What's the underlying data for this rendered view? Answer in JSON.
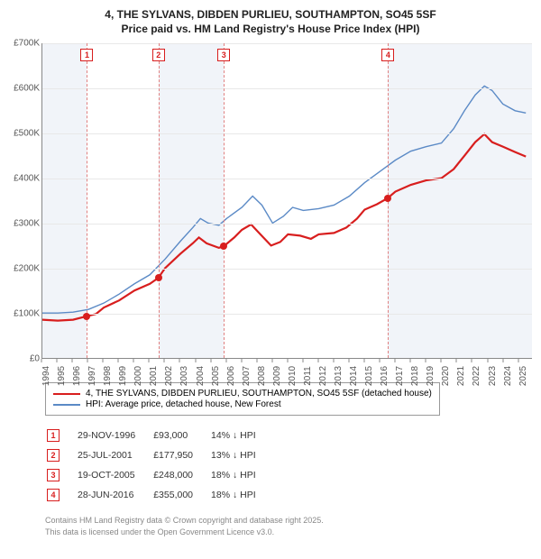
{
  "title_line1": "4, THE SYLVANS, DIBDEN PURLIEU, SOUTHAMPTON, SO45 5SF",
  "title_line2": "Price paid vs. HM Land Registry's House Price Index (HPI)",
  "chart": {
    "type": "line",
    "background_color": "#ffffff",
    "grid_color": "#e8e8e8",
    "shade_color": "#e8edf5",
    "axis_color": "#888888",
    "x": {
      "min": 1994,
      "max": 2025.9,
      "tick_start": 1994,
      "tick_end": 2025,
      "tick_step": 1,
      "label_fontsize": 10
    },
    "y": {
      "min": 0,
      "max": 700000,
      "tick_step": 100000,
      "tick_labels": [
        "£0",
        "£100K",
        "£200K",
        "£300K",
        "£400K",
        "£500K",
        "£600K",
        "£700K"
      ],
      "label_fontsize": 10
    },
    "shaded_year_ranges": [
      [
        1994,
        1996.9
      ],
      [
        2001.55,
        2005.8
      ],
      [
        2016.48,
        2025.9
      ]
    ],
    "series": [
      {
        "name": "price_paid",
        "label": "4, THE SYLVANS, DIBDEN PURLIEU, SOUTHAMPTON, SO45 5SF (detached house)",
        "color": "#d81e1e",
        "line_width": 2.2,
        "points": [
          [
            1994,
            85000
          ],
          [
            1995,
            83000
          ],
          [
            1996,
            85000
          ],
          [
            1996.9,
            93000
          ],
          [
            1997.5,
            98000
          ],
          [
            1998,
            112000
          ],
          [
            1999,
            128000
          ],
          [
            2000,
            150000
          ],
          [
            2001,
            165000
          ],
          [
            2001.55,
            177950
          ],
          [
            2002,
            200000
          ],
          [
            2003,
            232000
          ],
          [
            2003.8,
            255000
          ],
          [
            2004.2,
            268000
          ],
          [
            2004.7,
            255000
          ],
          [
            2005.5,
            245000
          ],
          [
            2005.8,
            248000
          ],
          [
            2006.5,
            268000
          ],
          [
            2007,
            285000
          ],
          [
            2007.6,
            297000
          ],
          [
            2008.2,
            275000
          ],
          [
            2008.9,
            250000
          ],
          [
            2009.5,
            258000
          ],
          [
            2010,
            275000
          ],
          [
            2010.8,
            272000
          ],
          [
            2011.5,
            265000
          ],
          [
            2012,
            275000
          ],
          [
            2013,
            278000
          ],
          [
            2013.8,
            290000
          ],
          [
            2014.5,
            310000
          ],
          [
            2015,
            330000
          ],
          [
            2015.8,
            342000
          ],
          [
            2016.48,
            355000
          ],
          [
            2017,
            370000
          ],
          [
            2018,
            385000
          ],
          [
            2019,
            395000
          ],
          [
            2020,
            400000
          ],
          [
            2020.8,
            420000
          ],
          [
            2021.5,
            450000
          ],
          [
            2022.2,
            480000
          ],
          [
            2022.8,
            498000
          ],
          [
            2023.3,
            480000
          ],
          [
            2024,
            470000
          ],
          [
            2024.8,
            458000
          ],
          [
            2025.5,
            448000
          ]
        ]
      },
      {
        "name": "hpi",
        "label": "HPI: Average price, detached house, New Forest",
        "color": "#5b8ac6",
        "line_width": 1.4,
        "points": [
          [
            1994,
            100000
          ],
          [
            1995,
            100000
          ],
          [
            1996,
            102000
          ],
          [
            1997,
            108000
          ],
          [
            1998,
            122000
          ],
          [
            1999,
            142000
          ],
          [
            2000,
            165000
          ],
          [
            2001,
            185000
          ],
          [
            2002,
            220000
          ],
          [
            2003,
            260000
          ],
          [
            2003.8,
            290000
          ],
          [
            2004.3,
            310000
          ],
          [
            2004.8,
            300000
          ],
          [
            2005.5,
            295000
          ],
          [
            2006,
            310000
          ],
          [
            2007,
            335000
          ],
          [
            2007.7,
            360000
          ],
          [
            2008.3,
            340000
          ],
          [
            2009,
            300000
          ],
          [
            2009.7,
            315000
          ],
          [
            2010.3,
            335000
          ],
          [
            2011,
            328000
          ],
          [
            2012,
            332000
          ],
          [
            2013,
            340000
          ],
          [
            2014,
            360000
          ],
          [
            2015,
            390000
          ],
          [
            2016,
            415000
          ],
          [
            2017,
            440000
          ],
          [
            2018,
            460000
          ],
          [
            2019,
            470000
          ],
          [
            2020,
            478000
          ],
          [
            2020.8,
            510000
          ],
          [
            2021.5,
            550000
          ],
          [
            2022.2,
            585000
          ],
          [
            2022.8,
            605000
          ],
          [
            2023.3,
            595000
          ],
          [
            2024,
            565000
          ],
          [
            2024.8,
            550000
          ],
          [
            2025.5,
            545000
          ]
        ]
      }
    ],
    "sale_markers": [
      {
        "n": "1",
        "year": 1996.9,
        "price": 93000
      },
      {
        "n": "2",
        "year": 2001.55,
        "price": 177950
      },
      {
        "n": "3",
        "year": 2005.8,
        "price": 248000
      },
      {
        "n": "4",
        "year": 2016.48,
        "price": 355000
      }
    ],
    "vline_color": "#e08080"
  },
  "legend": {
    "border_color": "#999999",
    "fontsize": 10
  },
  "sales": [
    {
      "n": "1",
      "date": "29-NOV-1996",
      "price": "£93,000",
      "delta": "14% ↓ HPI"
    },
    {
      "n": "2",
      "date": "25-JUL-2001",
      "price": "£177,950",
      "delta": "13% ↓ HPI"
    },
    {
      "n": "3",
      "date": "19-OCT-2005",
      "price": "£248,000",
      "delta": "18% ↓ HPI"
    },
    {
      "n": "4",
      "date": "28-JUN-2016",
      "price": "£355,000",
      "delta": "18% ↓ HPI"
    }
  ],
  "footnote_line1": "Contains HM Land Registry data © Crown copyright and database right 2025.",
  "footnote_line2": "This data is licensed under the Open Government Licence v3.0."
}
